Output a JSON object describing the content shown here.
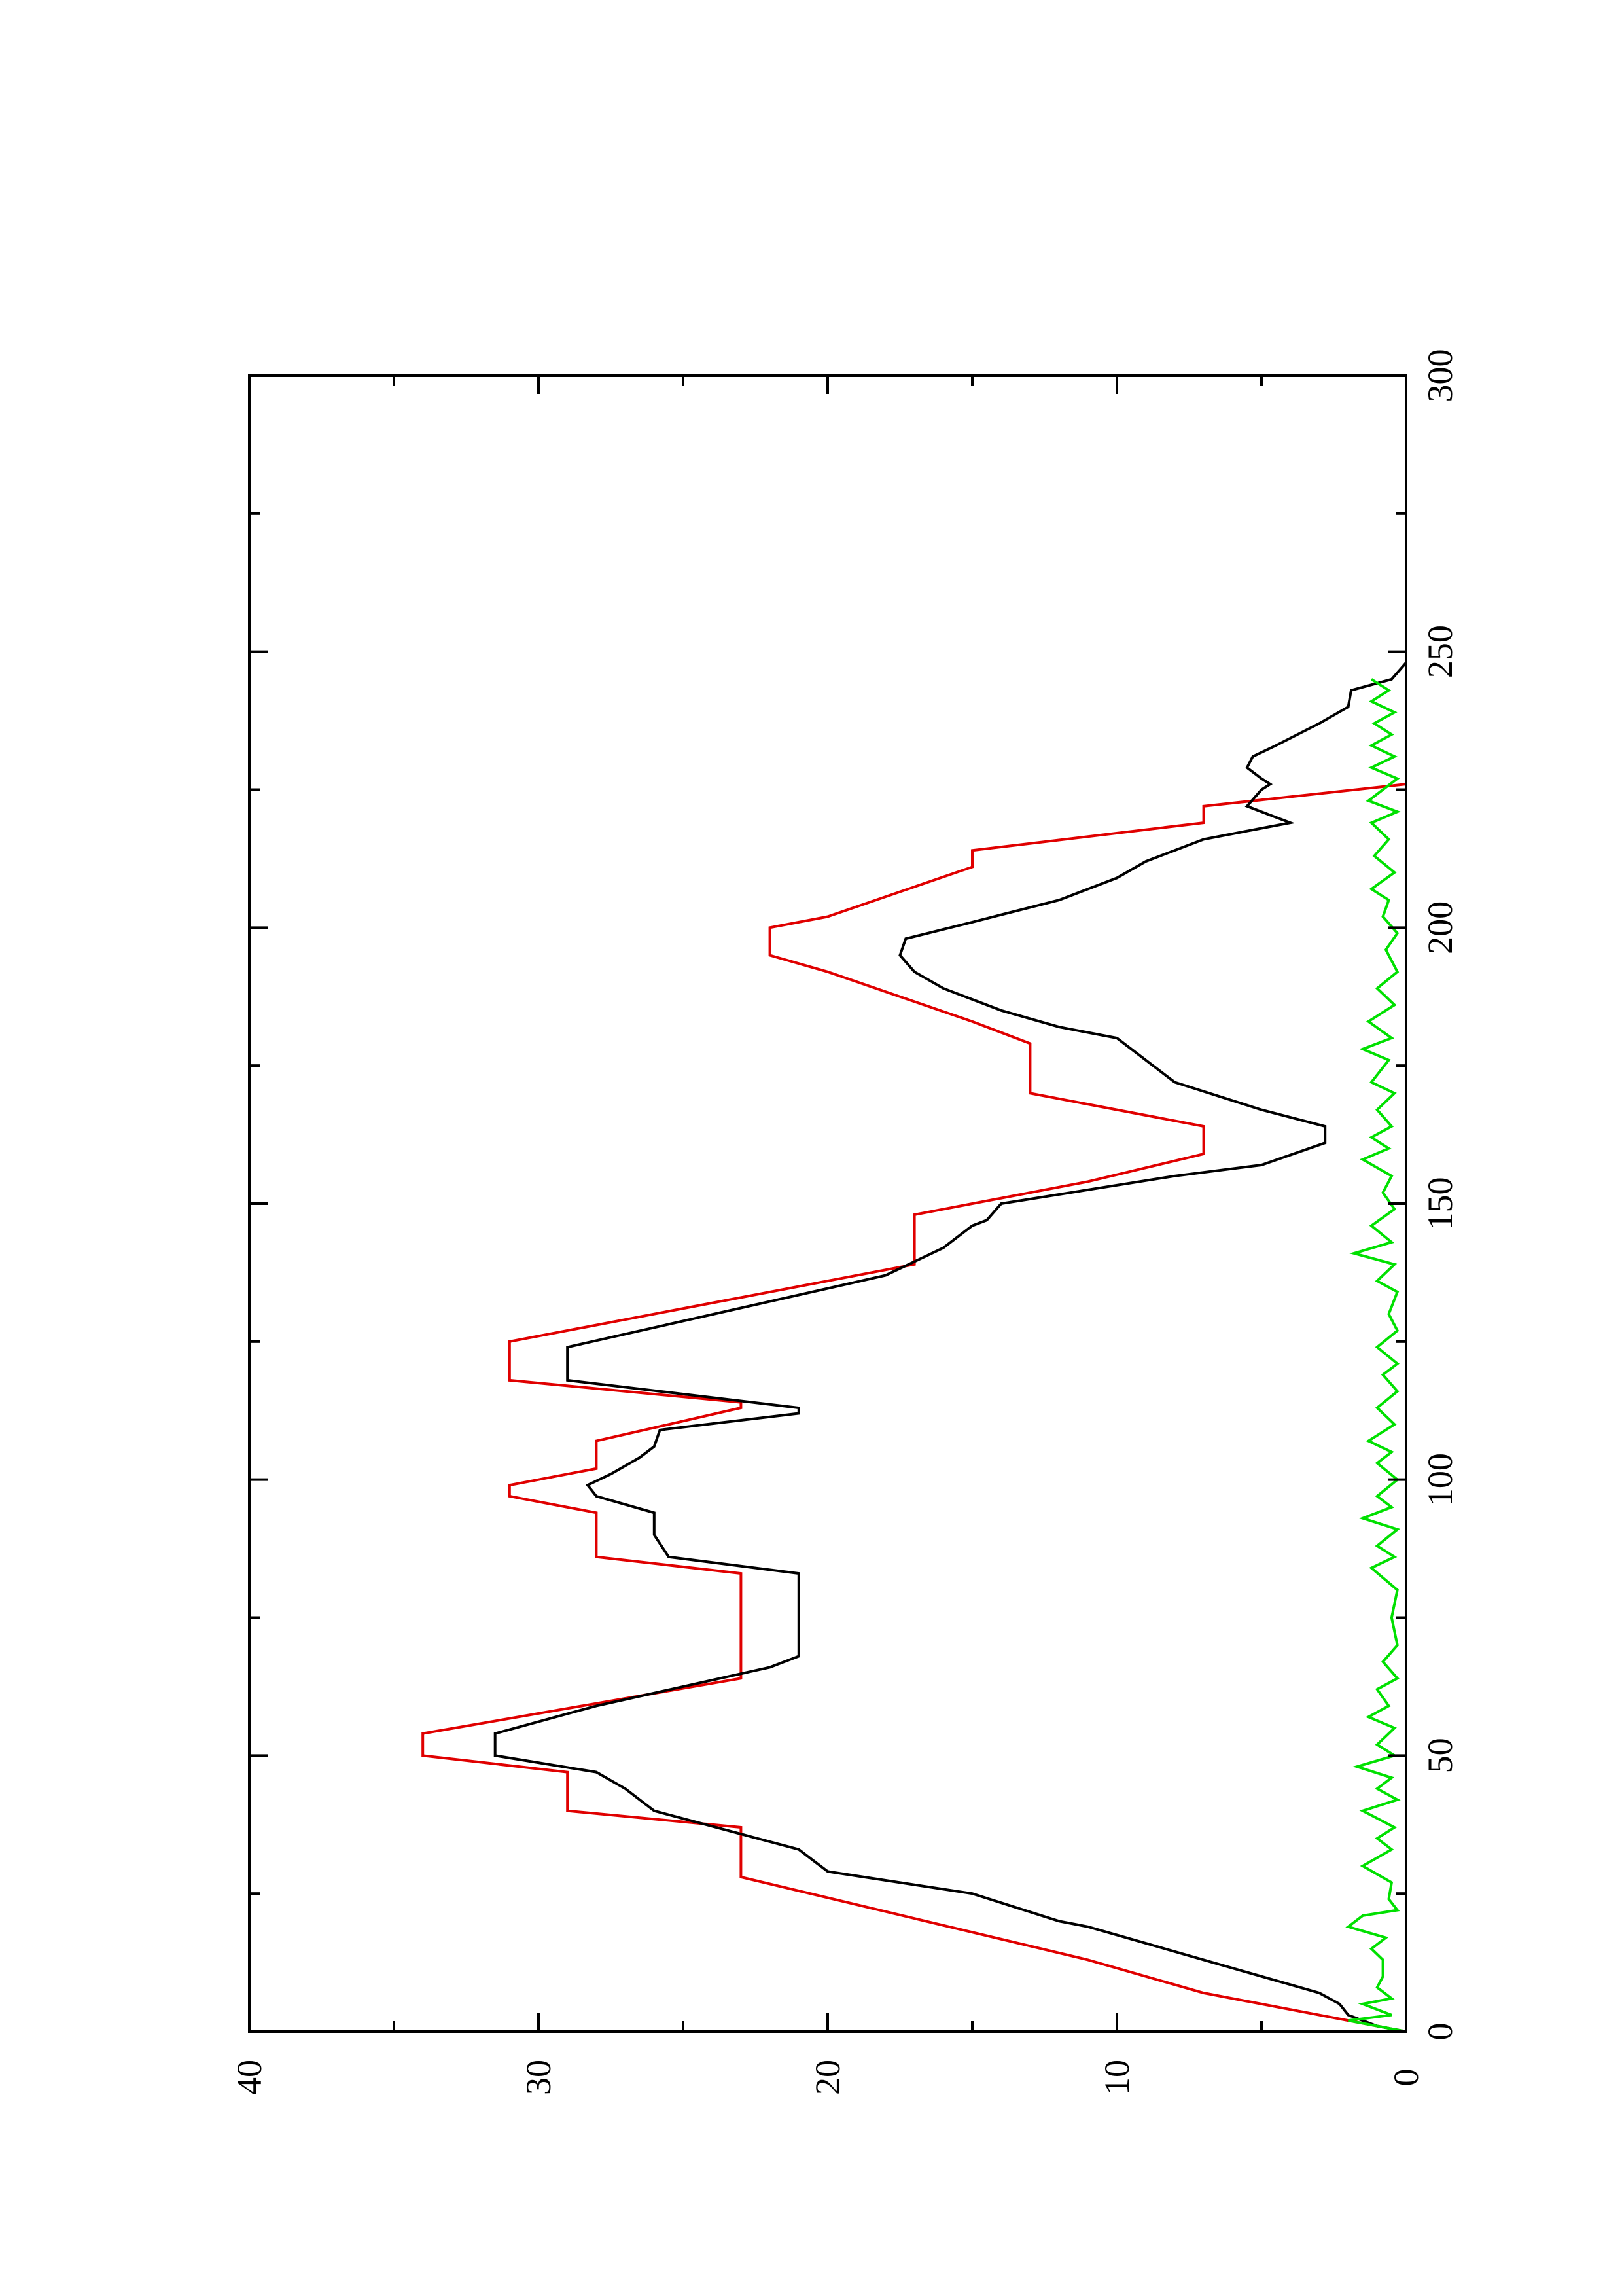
{
  "chart_data": {
    "type": "line",
    "title": "",
    "xlabel": "",
    "ylabel": "",
    "xlim": [
      0,
      300
    ],
    "ylim": [
      0,
      40
    ],
    "x_major_ticks": [
      0,
      50,
      100,
      150,
      200,
      250,
      300
    ],
    "x_minor_ticks": [
      25,
      75,
      125,
      175,
      225,
      275
    ],
    "y_major_ticks": [
      0,
      10,
      20,
      30,
      40
    ],
    "y_minor_ticks": [
      5,
      15,
      25,
      35
    ],
    "x_tick_labels": [
      "0",
      "50",
      "100",
      "150",
      "200",
      "250",
      "300"
    ],
    "y_tick_labels": [
      "0",
      "10",
      "20",
      "30",
      "40"
    ],
    "grid": false,
    "orientation": "rotated 90 degrees counter-clockwise",
    "series": [
      {
        "color": "#e00000",
        "points": [
          [
            0,
            0
          ],
          [
            3,
            3
          ],
          [
            7,
            7
          ],
          [
            13,
            11
          ],
          [
            28,
            23
          ],
          [
            37,
            23
          ],
          [
            40,
            29
          ],
          [
            47,
            29
          ],
          [
            50,
            34
          ],
          [
            54,
            34
          ],
          [
            64,
            23
          ],
          [
            83,
            23
          ],
          [
            86,
            28
          ],
          [
            94,
            28
          ],
          [
            97,
            31
          ],
          [
            99,
            31
          ],
          [
            102,
            28
          ],
          [
            107,
            28
          ],
          [
            113,
            23
          ],
          [
            114,
            23
          ],
          [
            118,
            31
          ],
          [
            121,
            31
          ],
          [
            125,
            31
          ],
          [
            139,
            17
          ],
          [
            148,
            17
          ],
          [
            154,
            11
          ],
          [
            159,
            7
          ],
          [
            164,
            7
          ],
          [
            170,
            13
          ],
          [
            179,
            13
          ],
          [
            183,
            15
          ],
          [
            192,
            20
          ],
          [
            195,
            22
          ],
          [
            200,
            22
          ],
          [
            202,
            20
          ],
          [
            211,
            15
          ],
          [
            214,
            15
          ],
          [
            219,
            7
          ],
          [
            222,
            7
          ],
          [
            226,
            0
          ],
          [
            300,
            0
          ]
        ]
      },
      {
        "color": "#000000",
        "points": [
          [
            0,
            0
          ],
          [
            1,
            1
          ],
          [
            3,
            2
          ],
          [
            5,
            2.3
          ],
          [
            7,
            3
          ],
          [
            10,
            5
          ],
          [
            13,
            7
          ],
          [
            16,
            9
          ],
          [
            19,
            11
          ],
          [
            20,
            12
          ],
          [
            25,
            15
          ],
          [
            29,
            20
          ],
          [
            31,
            20.5
          ],
          [
            33,
            21
          ],
          [
            40,
            26
          ],
          [
            44,
            27
          ],
          [
            47,
            28
          ],
          [
            50,
            31.5
          ],
          [
            54,
            31.5
          ],
          [
            59,
            28
          ],
          [
            66,
            22
          ],
          [
            68,
            21
          ],
          [
            80,
            21
          ],
          [
            83,
            21
          ],
          [
            86,
            25.5
          ],
          [
            90,
            26
          ],
          [
            94,
            26
          ],
          [
            97,
            28
          ],
          [
            99,
            28.3
          ],
          [
            101,
            27.5
          ],
          [
            104,
            26.5
          ],
          [
            106,
            26
          ],
          [
            109,
            25.8
          ],
          [
            112,
            21
          ],
          [
            113,
            21
          ],
          [
            118,
            29
          ],
          [
            121,
            29
          ],
          [
            124,
            29
          ],
          [
            137,
            18
          ],
          [
            142,
            16
          ],
          [
            146,
            15
          ],
          [
            147,
            14.5
          ],
          [
            150,
            14
          ],
          [
            155,
            8
          ],
          [
            157,
            5
          ],
          [
            161,
            2.8
          ],
          [
            164,
            2.8
          ],
          [
            167,
            5
          ],
          [
            172,
            8
          ],
          [
            178,
            9.5
          ],
          [
            180,
            10
          ],
          [
            182,
            12
          ],
          [
            185,
            14
          ],
          [
            189,
            16
          ],
          [
            192,
            17
          ],
          [
            195,
            17.5
          ],
          [
            198,
            17.3
          ],
          [
            201,
            15
          ],
          [
            205,
            12
          ],
          [
            209,
            10
          ],
          [
            212,
            9
          ],
          [
            216,
            7
          ],
          [
            218,
            5
          ],
          [
            219,
            4
          ],
          [
            220,
            4.5
          ],
          [
            222,
            5.5
          ],
          [
            225,
            5
          ],
          [
            226,
            4.7
          ],
          [
            227,
            5
          ],
          [
            229,
            5.5
          ],
          [
            231,
            5.3
          ],
          [
            233,
            4.5
          ],
          [
            237,
            3
          ],
          [
            240,
            2
          ],
          [
            243,
            1.9
          ],
          [
            245,
            0.5
          ],
          [
            248,
            0
          ],
          [
            300,
            0
          ]
        ]
      },
      {
        "color": "#00e000",
        "points": [
          [
            0,
            0
          ],
          [
            2,
            2
          ],
          [
            3,
            0.5
          ],
          [
            5,
            1.5
          ],
          [
            6,
            0.5
          ],
          [
            8,
            1
          ],
          [
            10,
            0.8
          ],
          [
            13,
            0.8
          ],
          [
            15,
            1.2
          ],
          [
            17,
            0.7
          ],
          [
            19,
            2
          ],
          [
            21,
            1.5
          ],
          [
            22,
            0.3
          ],
          [
            24,
            0.6
          ],
          [
            27,
            0.5
          ],
          [
            30,
            1.5
          ],
          [
            33,
            0.5
          ],
          [
            35,
            1
          ],
          [
            37,
            0.4
          ],
          [
            40,
            1.5
          ],
          [
            42,
            0.3
          ],
          [
            44,
            1
          ],
          [
            46,
            0.5
          ],
          [
            48,
            1.7
          ],
          [
            50,
            0.4
          ],
          [
            52,
            1
          ],
          [
            55,
            0.4
          ],
          [
            57,
            1.3
          ],
          [
            59,
            0.6
          ],
          [
            62,
            1
          ],
          [
            64,
            0.3
          ],
          [
            67,
            0.8
          ],
          [
            70,
            0.3
          ],
          [
            75,
            0.5
          ],
          [
            80,
            0.3
          ],
          [
            84,
            1.2
          ],
          [
            86,
            0.4
          ],
          [
            88,
            1
          ],
          [
            91,
            0.3
          ],
          [
            93,
            1.5
          ],
          [
            95,
            0.5
          ],
          [
            97,
            1
          ],
          [
            100,
            0.3
          ],
          [
            103,
            1
          ],
          [
            105,
            0.5
          ],
          [
            107,
            1.3
          ],
          [
            110,
            0.4
          ],
          [
            113,
            1
          ],
          [
            116,
            0.3
          ],
          [
            119,
            0.8
          ],
          [
            121,
            0.3
          ],
          [
            124,
            1
          ],
          [
            127,
            0.3
          ],
          [
            130,
            0.6
          ],
          [
            134,
            0.3
          ],
          [
            136,
            1
          ],
          [
            139,
            0.4
          ],
          [
            141,
            1.8
          ],
          [
            143,
            0.5
          ],
          [
            146,
            1.2
          ],
          [
            149,
            0.4
          ],
          [
            152,
            0.8
          ],
          [
            155,
            0.5
          ],
          [
            158,
            1.5
          ],
          [
            160,
            0.6
          ],
          [
            162,
            1.2
          ],
          [
            164,
            0.5
          ],
          [
            167,
            1
          ],
          [
            170,
            0.4
          ],
          [
            172,
            1.2
          ],
          [
            176,
            0.6
          ],
          [
            178,
            1.5
          ],
          [
            180,
            0.5
          ],
          [
            183,
            1.3
          ],
          [
            186,
            0.4
          ],
          [
            189,
            1
          ],
          [
            192,
            0.3
          ],
          [
            196,
            0.7
          ],
          [
            199,
            0.3
          ],
          [
            202,
            0.8
          ],
          [
            205,
            0.6
          ],
          [
            207,
            1.2
          ],
          [
            210,
            0.4
          ],
          [
            213,
            1.1
          ],
          [
            216,
            0.6
          ],
          [
            219,
            1.2
          ],
          [
            221,
            0.3
          ],
          [
            223,
            1.3
          ],
          [
            225,
            0.8
          ],
          [
            227,
            0.3
          ],
          [
            229,
            1.2
          ],
          [
            231,
            0.4
          ],
          [
            233,
            1.2
          ],
          [
            235,
            0.5
          ],
          [
            237,
            1.1
          ],
          [
            239,
            0.4
          ],
          [
            241,
            1.2
          ],
          [
            243,
            0.6
          ],
          [
            245,
            1.2
          ]
        ]
      }
    ]
  }
}
